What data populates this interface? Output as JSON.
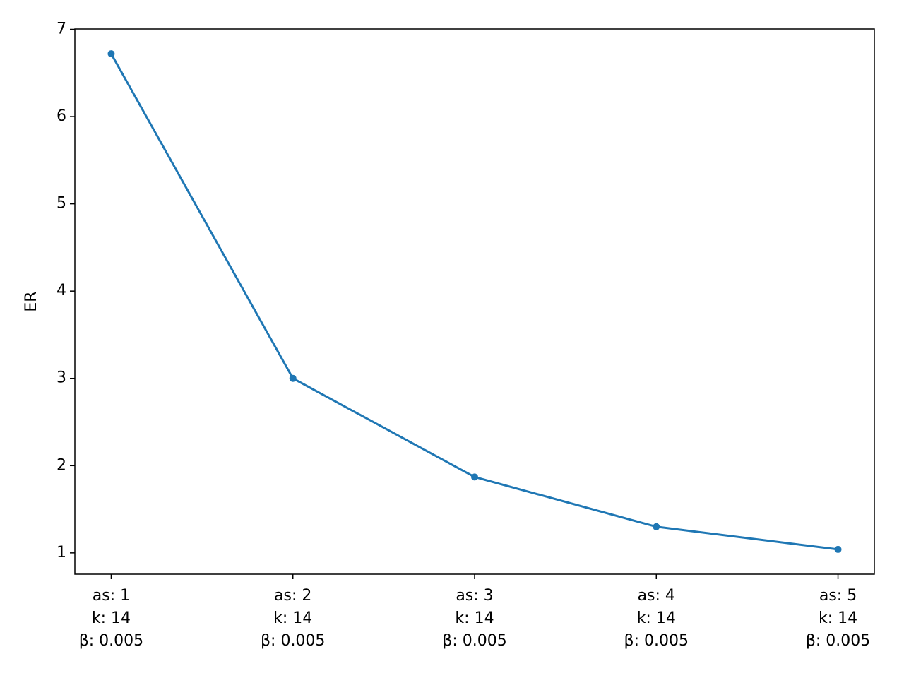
{
  "chart_data": {
    "type": "line",
    "y_label": "ER",
    "categories": [
      "as: 1\nk: 14\nβ: 0.005",
      "as: 2\nk: 14\nβ: 0.005",
      "as: 3\nk: 14\nβ: 0.005",
      "as: 4\nk: 14\nβ: 0.005",
      "as: 5\nk: 14\nβ: 0.005"
    ],
    "series": [
      {
        "color": "#1f77b4",
        "values": [
          6.72,
          3.0,
          1.87,
          1.3,
          1.04
        ]
      }
    ],
    "ylim": [
      0.756,
      7.004
    ],
    "yticks": [
      1,
      2,
      3,
      4,
      5,
      6,
      7
    ],
    "grid": false
  }
}
